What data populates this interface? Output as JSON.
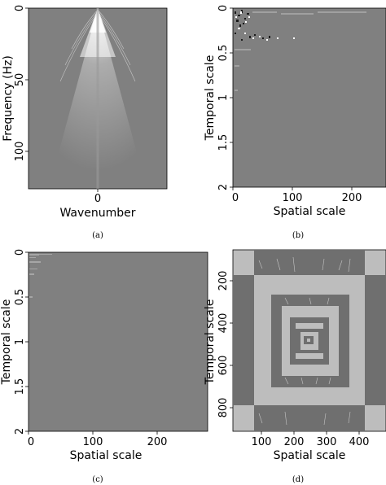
{
  "panels": [
    {
      "id": "a",
      "caption": "(a)",
      "ylabel": "Frequency (Hz)",
      "xlabel": "Wavenumber",
      "yticks": [
        "0",
        "50",
        "100"
      ],
      "xticks": [
        "0"
      ]
    },
    {
      "id": "b",
      "caption": "(b)",
      "ylabel": "Temporal scale",
      "xlabel": "Spatial scale",
      "yticks": [
        "0",
        "0.5",
        "1",
        "1.5",
        "2"
      ],
      "xticks": [
        "0",
        "100",
        "200"
      ]
    },
    {
      "id": "c",
      "caption": "(c)",
      "ylabel": "Temporal scale",
      "xlabel": "Spatial scale",
      "yticks": [
        "0",
        "0.5",
        "1",
        "1.5",
        "2"
      ],
      "xticks": [
        "0",
        "100",
        "200"
      ]
    },
    {
      "id": "d",
      "caption": "(d)",
      "ylabel": "Temporal scale",
      "xlabel": "Spatial scale",
      "yticks": [
        "200",
        "400",
        "600",
        "800"
      ],
      "xticks": [
        "100",
        "200",
        "300",
        "400"
      ]
    }
  ],
  "colors": {
    "background_gray": "#7f7f7f",
    "light_gray": "#bdbdbd",
    "dark_gray": "#6f6f6f",
    "signal_white": "#ffffff"
  }
}
